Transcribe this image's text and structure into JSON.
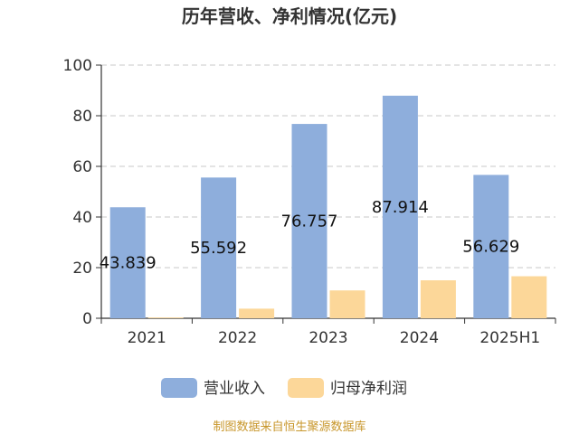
{
  "chart_data": {
    "type": "bar",
    "title": "历年营收、净利情况(亿元)",
    "categories": [
      "2021",
      "2022",
      "2023",
      "2024",
      "2025H1"
    ],
    "series": [
      {
        "name": "营业收入",
        "color": "#8eaedc",
        "values": [
          43.839,
          55.592,
          76.757,
          87.914,
          56.629
        ],
        "labels": [
          "43.839",
          "55.592",
          "76.757",
          "87.914",
          "56.629"
        ]
      },
      {
        "name": "归母净利润",
        "color": "#fcd799",
        "values": [
          0.3,
          3.8,
          11.0,
          15.0,
          16.6
        ]
      }
    ],
    "ylim": [
      0,
      100
    ],
    "yticks": [
      "0",
      "20",
      "40",
      "60",
      "80",
      "100"
    ],
    "xlabel": "",
    "ylabel": "",
    "grid": true,
    "legend_position": "bottom"
  },
  "source": {
    "text": "制图数据来自恒生聚源数据库",
    "color": "#c8972c"
  }
}
